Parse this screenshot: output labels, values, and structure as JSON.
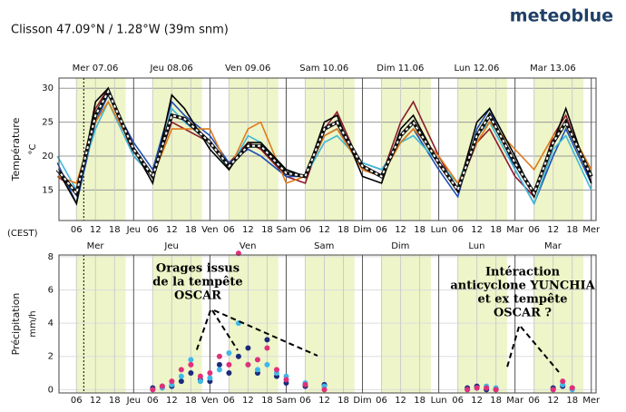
{
  "header": {
    "location": "Clisson  47.09°N / 1.28°W (39m snm)",
    "brand": "meteoblue"
  },
  "chart_data": [
    {
      "type": "line",
      "ylabel": "Température",
      "yunit": "°C",
      "timezone": "(CEST)",
      "day_labels": [
        "Mer 07.06",
        "Jeu 08.06",
        "Ven 09.06",
        "Sam 10.06",
        "Dim 11.06",
        "Lun 12.06",
        "Mar 13.06"
      ],
      "xlim": [
        0.5,
        169.5
      ],
      "ylim": [
        10.5,
        31.5
      ],
      "yticks": [
        15,
        20,
        25,
        30
      ],
      "grid": true,
      "now": 8.3,
      "daylight": [
        [
          6,
          21.5
        ],
        [
          30,
          45.5
        ],
        [
          54,
          69.5
        ],
        [
          78,
          93.5
        ],
        [
          102,
          117.5
        ],
        [
          126,
          141.5
        ],
        [
          150,
          165.5
        ]
      ],
      "xticks": [
        {
          "value": 6,
          "label": "06"
        },
        {
          "value": 12,
          "label": "12"
        },
        {
          "value": 18,
          "label": "18"
        },
        {
          "value": 24,
          "label": "Jeu"
        },
        {
          "value": 30,
          "label": "06"
        },
        {
          "value": 36,
          "label": "12"
        },
        {
          "value": 42,
          "label": "18"
        },
        {
          "value": 48,
          "label": "Ven"
        },
        {
          "value": 54,
          "label": "06"
        },
        {
          "value": 60,
          "label": "12"
        },
        {
          "value": 66,
          "label": "18"
        },
        {
          "value": 72,
          "label": "Sam"
        },
        {
          "value": 78,
          "label": "06"
        },
        {
          "value": 84,
          "label": "12"
        },
        {
          "value": 90,
          "label": "18"
        },
        {
          "value": 96,
          "label": "Dim"
        },
        {
          "value": 102,
          "label": "06"
        },
        {
          "value": 108,
          "label": "12"
        },
        {
          "value": 114,
          "label": "18"
        },
        {
          "value": 120,
          "label": "Lun"
        },
        {
          "value": 126,
          "label": "06"
        },
        {
          "value": 132,
          "label": "12"
        },
        {
          "value": 138,
          "label": "18"
        },
        {
          "value": 144,
          "label": "Mar"
        },
        {
          "value": 150,
          "label": "06"
        },
        {
          "value": 156,
          "label": "12"
        },
        {
          "value": 162,
          "label": "18"
        },
        {
          "value": 168,
          "label": "Mer"
        }
      ],
      "x": [
        0,
        6,
        12,
        16,
        24,
        30,
        36,
        40,
        48,
        54,
        60,
        64,
        72,
        78,
        84,
        88,
        96,
        102,
        108,
        112,
        120,
        126,
        132,
        136,
        144,
        150,
        156,
        160,
        168
      ],
      "series": [
        {
          "color": "#8b1a2a",
          "values": [
            17,
            15,
            27,
            30,
            20,
            17,
            25,
            24,
            22,
            19,
            22,
            21,
            17,
            16,
            24,
            26.5,
            18,
            17,
            25,
            28,
            20,
            15,
            22,
            24,
            17,
            14,
            23,
            26,
            16
          ]
        },
        {
          "color": "#1f4fb4",
          "values": [
            19,
            13,
            25,
            29,
            22,
            18,
            28,
            26,
            23,
            19,
            21,
            20,
            17,
            17,
            23,
            24,
            19,
            18,
            22,
            24,
            18,
            14,
            24,
            27,
            18,
            13,
            20,
            24,
            16
          ]
        },
        {
          "color": "#3fb8d8",
          "values": [
            20,
            15,
            24,
            28,
            20,
            17,
            27,
            25,
            22,
            18,
            23,
            22,
            18,
            17,
            22,
            23,
            19,
            18,
            22,
            23,
            19,
            16,
            23,
            25,
            18,
            13,
            21,
            23,
            15
          ]
        },
        {
          "color": "#e07b1a",
          "values": [
            17,
            16,
            25,
            28,
            21,
            17,
            24,
            24,
            24,
            18,
            24,
            25,
            16,
            17,
            23,
            24,
            18,
            17,
            22,
            24,
            20,
            16,
            22,
            25,
            21,
            18,
            23,
            25,
            18
          ]
        },
        {
          "color": "#000000",
          "values": [
            18,
            13,
            28,
            30,
            21,
            16,
            29,
            27,
            21,
            18,
            22,
            22,
            18,
            17,
            25,
            26,
            17,
            16,
            24,
            26,
            19,
            15,
            25,
            27,
            20,
            14,
            22,
            27,
            16
          ]
        },
        {
          "color": "#111111",
          "dashed": true,
          "values": [
            18,
            14.5,
            26,
            29.5,
            21,
            17,
            26,
            25.5,
            22,
            18.5,
            21.5,
            21.5,
            17.5,
            17,
            24,
            25,
            18.5,
            17,
            23,
            25,
            19,
            15,
            23,
            26,
            19,
            14.5,
            22,
            25,
            17
          ]
        }
      ]
    },
    {
      "type": "scatter",
      "ylabel": "Précipitation",
      "yunit": "mm/h",
      "day_labels": [
        "Mer",
        "Jeu",
        "Ven",
        "Sam",
        "Dim",
        "Lun",
        "Mar"
      ],
      "xlim": [
        0.5,
        169.5
      ],
      "ylim": [
        -0.2,
        8.1
      ],
      "yticks": [
        0,
        2,
        4,
        6,
        8
      ],
      "grid": true,
      "now": 8.3,
      "daylight": [
        [
          6,
          21.5
        ],
        [
          30,
          45.5
        ],
        [
          54,
          69.5
        ],
        [
          78,
          93.5
        ],
        [
          102,
          117.5
        ],
        [
          126,
          141.5
        ],
        [
          150,
          165.5
        ]
      ],
      "xticks": [
        {
          "value": 6,
          "label": "06"
        },
        {
          "value": 12,
          "label": "12"
        },
        {
          "value": 18,
          "label": "18"
        },
        {
          "value": 24,
          "label": "Jeu"
        },
        {
          "value": 30,
          "label": "06"
        },
        {
          "value": 36,
          "label": "12"
        },
        {
          "value": 42,
          "label": "18"
        },
        {
          "value": 48,
          "label": "Ven"
        },
        {
          "value": 54,
          "label": "06"
        },
        {
          "value": 60,
          "label": "12"
        },
        {
          "value": 66,
          "label": "18"
        },
        {
          "value": 72,
          "label": "Sam"
        },
        {
          "value": 78,
          "label": "06"
        },
        {
          "value": 84,
          "label": "12"
        },
        {
          "value": 90,
          "label": "18"
        },
        {
          "value": 96,
          "label": "Dim"
        },
        {
          "value": 102,
          "label": "06"
        },
        {
          "value": 108,
          "label": "12"
        },
        {
          "value": 114,
          "label": "18"
        },
        {
          "value": 120,
          "label": "Lun"
        },
        {
          "value": 126,
          "label": "06"
        },
        {
          "value": 132,
          "label": "12"
        },
        {
          "value": 138,
          "label": "18"
        },
        {
          "value": 144,
          "label": "Mar"
        },
        {
          "value": 150,
          "label": "06"
        },
        {
          "value": 156,
          "label": "12"
        },
        {
          "value": 162,
          "label": "18"
        },
        {
          "value": 168,
          "label": "Mer"
        }
      ],
      "x": [
        30,
        33,
        36,
        39,
        42,
        45,
        48,
        51,
        54,
        57,
        60,
        63,
        66,
        69,
        72,
        78,
        84,
        129,
        132,
        135,
        138,
        156,
        159,
        162
      ],
      "series": [
        {
          "color": "#1b2a7a",
          "values": [
            0.1,
            0.2,
            0.2,
            0.5,
            1.0,
            0.6,
            0.5,
            1.5,
            1.0,
            2.0,
            2.5,
            1.0,
            3.0,
            0.8,
            0.4,
            0.2,
            0.3,
            0.1,
            0.2,
            0,
            0,
            0.1,
            0.2,
            0.1
          ]
        },
        {
          "color": "#3fb8e8",
          "values": [
            0,
            0.1,
            0.3,
            0.8,
            1.8,
            0.5,
            0.7,
            1.2,
            2.2,
            4.0,
            1.5,
            1.2,
            1.5,
            1.0,
            0.8,
            0.4,
            0.2,
            0,
            0.1,
            0.2,
            0.1,
            0,
            0.3,
            0
          ]
        },
        {
          "color": "#e0307a",
          "values": [
            0,
            0.2,
            0.5,
            1.2,
            1.5,
            0.8,
            1.0,
            2.0,
            1.5,
            8.2,
            1.5,
            1.8,
            2.5,
            1.2,
            0.6,
            0.3,
            0,
            0,
            0.1,
            0.1,
            0,
            0,
            0.5,
            0.1
          ]
        }
      ],
      "annotations": [
        {
          "lines": [
            "Orages issus",
            "de la tempête",
            "OSCAR"
          ]
        },
        {
          "lines": [
            "Intéraction",
            "anticyclone YUNCHIA",
            "et ex tempête",
            "OSCAR ?"
          ]
        }
      ]
    }
  ]
}
